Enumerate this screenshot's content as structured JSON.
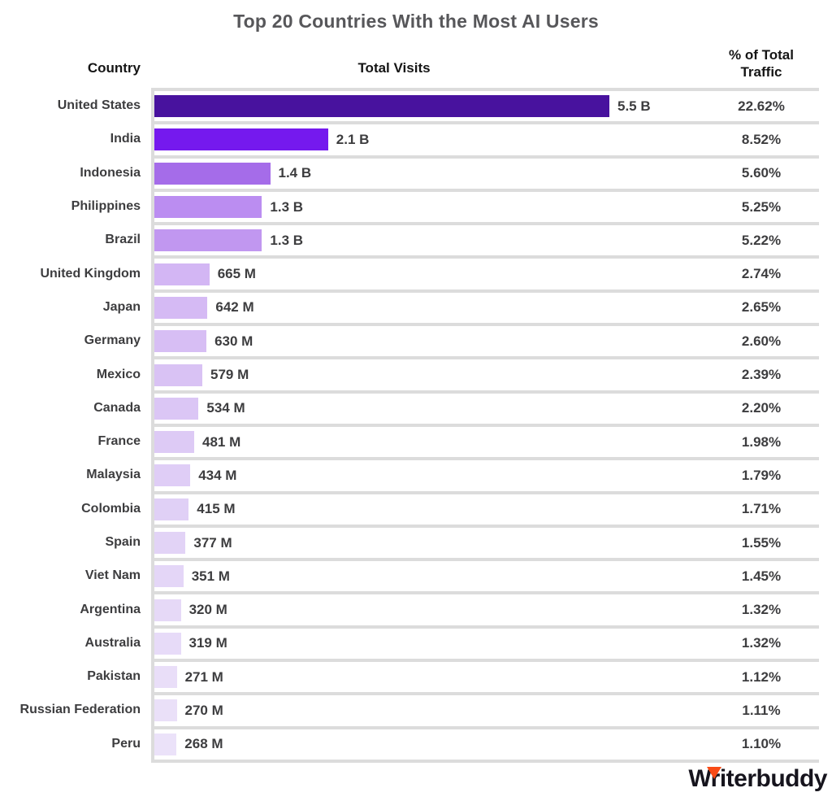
{
  "title": "Top 20 Countries With the Most AI Users",
  "columns": {
    "country": "Country",
    "visits": "Total Visits",
    "traffic": "% of Total Traffic"
  },
  "branding": {
    "logo_text": "Writerbuddy",
    "logo_accent_color": "#f94b16"
  },
  "style_colors": {
    "separator_line": "#dcdcdc",
    "title_text": "#57575a",
    "header_text": "#151515",
    "row_text": "#3d3d3f"
  },
  "chart_data": {
    "type": "bar",
    "orientation": "horizontal",
    "title": "Top 20 Countries With the Most AI Users",
    "x_axis": {
      "label": "Total Visits",
      "min_millions": 0,
      "max_millions": 5500
    },
    "grid": "row separators only",
    "rows": [
      {
        "country": "United States",
        "visits_label": "5.5 B",
        "visits_millions": 5500,
        "percent": "22.62%",
        "bar_color": "#48129e"
      },
      {
        "country": "India",
        "visits_label": "2.1 B",
        "visits_millions": 2100,
        "percent": "8.52%",
        "bar_color": "#7519ee"
      },
      {
        "country": "Indonesia",
        "visits_label": "1.4 B",
        "visits_millions": 1400,
        "percent": "5.60%",
        "bar_color": "#a56ce9"
      },
      {
        "country": "Philippines",
        "visits_label": "1.3 B",
        "visits_millions": 1300,
        "percent": "5.25%",
        "bar_color": "#bb8df1"
      },
      {
        "country": "Brazil",
        "visits_label": "1.3 B",
        "visits_millions": 1300,
        "percent": "5.22%",
        "bar_color": "#c197f0"
      },
      {
        "country": "United Kingdom",
        "visits_label": "665 M",
        "visits_millions": 665,
        "percent": "2.74%",
        "bar_color": "#d3b6f4"
      },
      {
        "country": "Japan",
        "visits_label": "642 M",
        "visits_millions": 642,
        "percent": "2.65%",
        "bar_color": "#d5baf4"
      },
      {
        "country": "Germany",
        "visits_label": "630 M",
        "visits_millions": 630,
        "percent": "2.60%",
        "bar_color": "#d7bef4"
      },
      {
        "country": "Mexico",
        "visits_label": "579 M",
        "visits_millions": 579,
        "percent": "2.39%",
        "bar_color": "#d9c2f4"
      },
      {
        "country": "Canada",
        "visits_label": "534 M",
        "visits_millions": 534,
        "percent": "2.20%",
        "bar_color": "#dbc6f5"
      },
      {
        "country": "France",
        "visits_label": "481 M",
        "visits_millions": 481,
        "percent": "1.98%",
        "bar_color": "#ddcaf5"
      },
      {
        "country": "Malaysia",
        "visits_label": "434 M",
        "visits_millions": 434,
        "percent": "1.79%",
        "bar_color": "#dfcdf6"
      },
      {
        "country": "Colombia",
        "visits_label": "415 M",
        "visits_millions": 415,
        "percent": "1.71%",
        "bar_color": "#e0d0f6"
      },
      {
        "country": "Spain",
        "visits_label": "377 M",
        "visits_millions": 377,
        "percent": "1.55%",
        "bar_color": "#e2d3f6"
      },
      {
        "country": "Viet Nam",
        "visits_label": "351 M",
        "visits_millions": 351,
        "percent": "1.45%",
        "bar_color": "#e4d6f7"
      },
      {
        "country": "Argentina",
        "visits_label": "320 M",
        "visits_millions": 320,
        "percent": "1.32%",
        "bar_color": "#e6d9f7"
      },
      {
        "country": "Australia",
        "visits_label": "319 M",
        "visits_millions": 319,
        "percent": "1.32%",
        "bar_color": "#e7dbf8"
      },
      {
        "country": "Pakistan",
        "visits_label": "271 M",
        "visits_millions": 271,
        "percent": "1.12%",
        "bar_color": "#e9def8"
      },
      {
        "country": "Russian Federation",
        "visits_label": "270 M",
        "visits_millions": 270,
        "percent": "1.11%",
        "bar_color": "#eae0f8"
      },
      {
        "country": "Peru",
        "visits_label": "268 M",
        "visits_millions": 268,
        "percent": "1.10%",
        "bar_color": "#ebe2f9"
      }
    ]
  }
}
